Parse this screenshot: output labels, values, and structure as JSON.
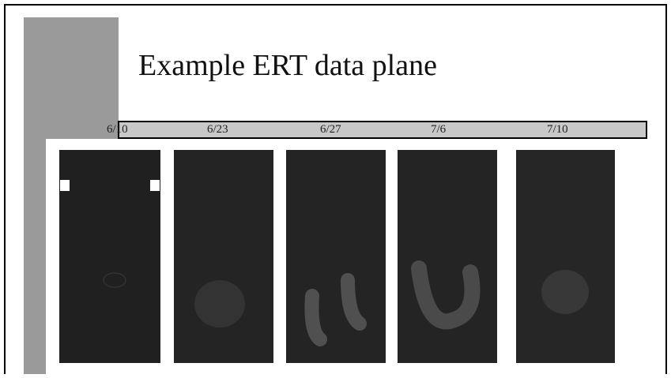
{
  "title": "Example ERT data plane",
  "dates": [
    "6/10",
    "6/23",
    "6/27",
    "7/6",
    "7/10"
  ]
}
